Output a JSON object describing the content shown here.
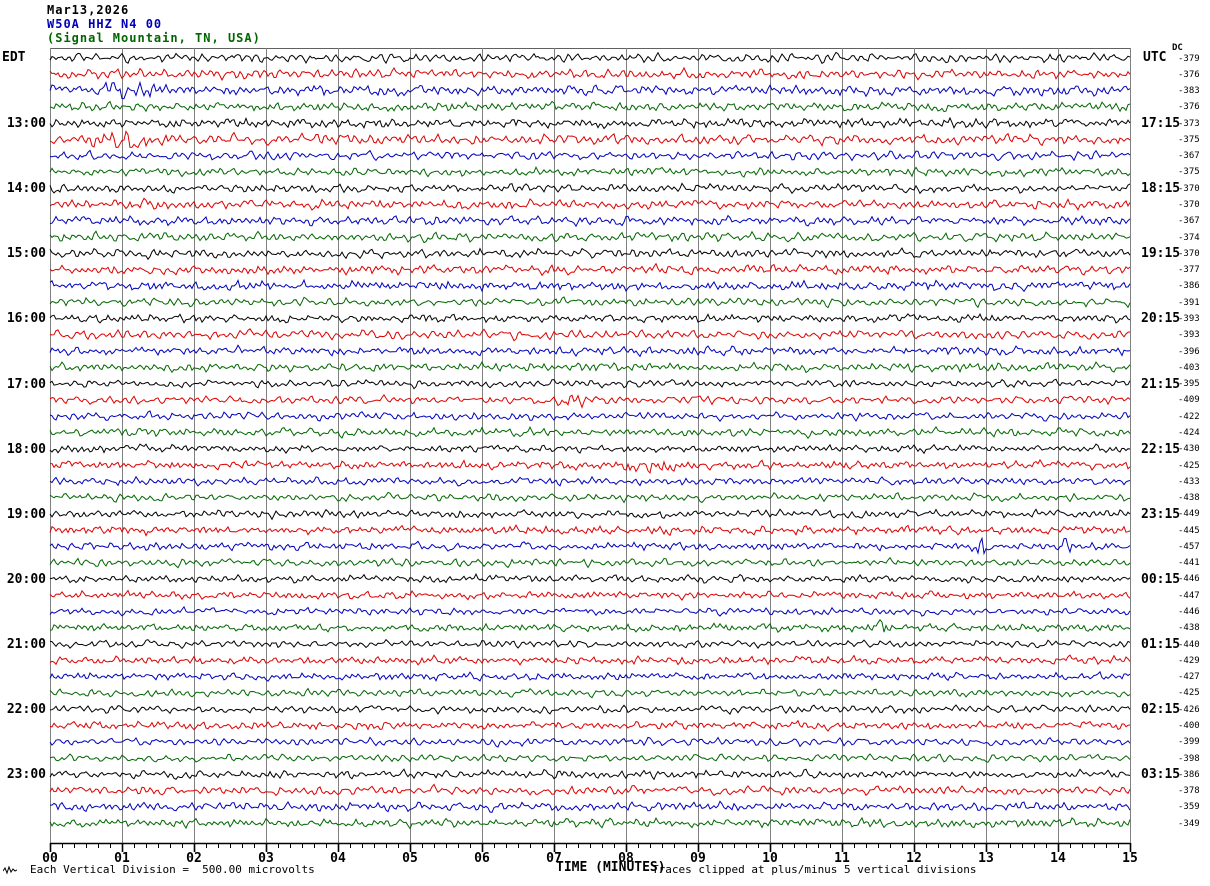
{
  "title": {
    "line1": "Mar13,2026",
    "line2": "W50A HHZ N4 00",
    "line3": "(Signal Mountain, TN, USA)"
  },
  "header": {
    "left_tz": "EDT",
    "right_tz": "UTC",
    "dc_label": "DC"
  },
  "footer": {
    "scale_note": "Each Vertical Division =  500.00 microvolts",
    "axis_title": "TIME (MINUTES)",
    "clip_note": "Traces clipped at plus/minus 5 vertical divisions"
  },
  "x_axis": {
    "labels": [
      "00",
      "01",
      "02",
      "03",
      "04",
      "05",
      "06",
      "07",
      "08",
      "09",
      "10",
      "11",
      "12",
      "13",
      "14",
      "15"
    ],
    "minutes": 15,
    "minor_ticks_per_minute": 5
  },
  "left_labels": [
    "13:00",
    "14:00",
    "15:00",
    "16:00",
    "17:00",
    "18:00",
    "19:00",
    "20:00",
    "21:00",
    "22:00",
    "23:00"
  ],
  "right_labels": [
    "17:15",
    "18:15",
    "19:15",
    "20:15",
    "21:15",
    "22:15",
    "23:15",
    "00:15",
    "01:15",
    "02:15",
    "03:15"
  ],
  "label_rows": [
    4,
    8,
    12,
    16,
    20,
    24,
    28,
    32,
    36,
    40,
    44
  ],
  "dc_values": [
    "-379",
    "-376",
    "-383",
    "-376",
    "-373",
    "-375",
    "-367",
    "-375",
    "-370",
    "-370",
    "-367",
    "-374",
    "-370",
    "-377",
    "-386",
    "-391",
    "-393",
    "-393",
    "-396",
    "-403",
    "-395",
    "-409",
    "-422",
    "-424",
    "-430",
    "-425",
    "-433",
    "-438",
    "-449",
    "-445",
    "-457",
    "-441",
    "-446",
    "-447",
    "-446",
    "-438",
    "-440",
    "-429",
    "-427",
    "-425",
    "-426",
    "-400",
    "-399",
    "-398",
    "-386",
    "-378",
    "-359",
    "-349"
  ],
  "colors": {
    "trace_cycle": [
      "#000000",
      "#dd0000",
      "#0000bb",
      "#006600"
    ],
    "grid": "#808080",
    "frame_top": "#606060",
    "axis": "#000000",
    "text": "#000000",
    "title_line2": "#0000bb",
    "title_line3": "#006600"
  },
  "waveform": {
    "rows": 48,
    "clip_divisions": 5,
    "amps": [
      3.6,
      3.8,
      3.9,
      3.4,
      3.7,
      4.0,
      3.6,
      3.3,
      3.4,
      3.8,
      3.5,
      3.6,
      3.5,
      3.6,
      3.7,
      3.4,
      3.2,
      3.6,
      3.3,
      3.5,
      3.0,
      3.2,
      3.1,
      3.3,
      3.0,
      3.2,
      3.1,
      3.0,
      3.1,
      3.3,
      3.0,
      3.1,
      2.9,
      3.0,
      2.9,
      3.0,
      2.9,
      3.1,
      3.0,
      2.9,
      3.0,
      3.2,
      3.1,
      3.0,
      3.2,
      3.4,
      3.6,
      3.5
    ],
    "events": [
      {
        "row": 2,
        "minute": 1.1,
        "amp": 1.1,
        "sigma": 20
      },
      {
        "row": 5,
        "minute": 1.1,
        "amp": 1.3,
        "sigma": 26
      },
      {
        "row": 21,
        "minute": 7.3,
        "amp": 1.4,
        "sigma": 10
      },
      {
        "row": 25,
        "minute": 8.3,
        "amp": 1.5,
        "sigma": 14
      },
      {
        "row": 30,
        "minute": 12.95,
        "amp": 2.6,
        "sigma": 5
      },
      {
        "row": 30,
        "minute": 14.1,
        "amp": 2.4,
        "sigma": 5
      },
      {
        "row": 35,
        "minute": 11.55,
        "amp": 1.9,
        "sigma": 6
      }
    ]
  },
  "chart_data": {
    "type": "line",
    "title": "Mar13,2026 W50A HHZ N4 00 (Signal Mountain, TN, USA)",
    "xlabel": "TIME (MINUTES)",
    "x_range": [
      0,
      15
    ],
    "rows": 48,
    "minutes_per_row": 15,
    "trace_color_cycle": [
      "black",
      "red",
      "blue",
      "green"
    ],
    "left_time_labels_edt": [
      "13:00",
      "14:00",
      "15:00",
      "16:00",
      "17:00",
      "18:00",
      "19:00",
      "20:00",
      "21:00",
      "22:00",
      "23:00"
    ],
    "right_time_labels_utc": [
      "17:15",
      "18:15",
      "19:15",
      "20:15",
      "21:15",
      "22:15",
      "23:15",
      "00:15",
      "01:15",
      "02:15",
      "03:15"
    ],
    "dc_offsets": [
      -379,
      -376,
      -383,
      -376,
      -373,
      -375,
      -367,
      -375,
      -370,
      -370,
      -367,
      -374,
      -370,
      -377,
      -386,
      -391,
      -393,
      -393,
      -396,
      -403,
      -395,
      -409,
      -422,
      -424,
      -430,
      -425,
      -433,
      -438,
      -449,
      -445,
      -457,
      -441,
      -446,
      -447,
      -446,
      -438,
      -440,
      -429,
      -427,
      -425,
      -426,
      -400,
      -399,
      -398,
      -386,
      -378,
      -359,
      -349
    ],
    "scale_note": "Each Vertical Division = 500.00 microvolts",
    "clip_note": "Traces clipped at plus/minus 5 vertical divisions",
    "legend_position": "none",
    "grid": "vertical minute gridlines"
  }
}
